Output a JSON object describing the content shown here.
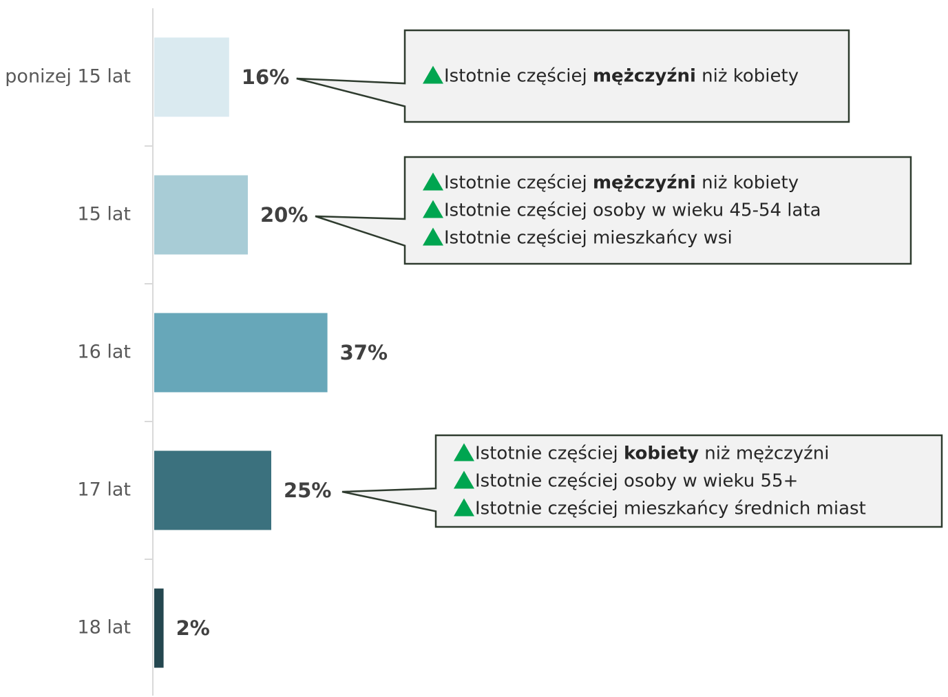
{
  "chart_data": {
    "type": "bar",
    "categories": [
      "ponizej 15 lat",
      "15 lat",
      "16 lat",
      "17 lat",
      "18 lat"
    ],
    "values": [
      16,
      20,
      37,
      25,
      2
    ],
    "value_labels": [
      "16%",
      "20%",
      "37%",
      "25%",
      "2%"
    ],
    "colors": [
      "#daeaf0",
      "#a8ccd6",
      "#67a7b9",
      "#3b717e",
      "#24474f"
    ],
    "annotations": [
      [
        [
          "Istotnie częściej ",
          "mężczyźni",
          " niż kobiety"
        ]
      ],
      [
        [
          "Istotnie częściej ",
          "mężczyźni",
          " niż kobiety"
        ],
        [
          "Istotnie częściej osoby w wieku 45-54 lata"
        ],
        [
          "Istotnie częściej mieszkańcy wsi"
        ]
      ],
      null,
      [
        [
          "Istotnie częściej ",
          "kobiety",
          " niż mężczyźni"
        ],
        [
          "Istotnie częściej osoby w wieku 55+"
        ],
        [
          "Istotnie częściej mieszkańcy średnich miast"
        ]
      ],
      null
    ]
  }
}
